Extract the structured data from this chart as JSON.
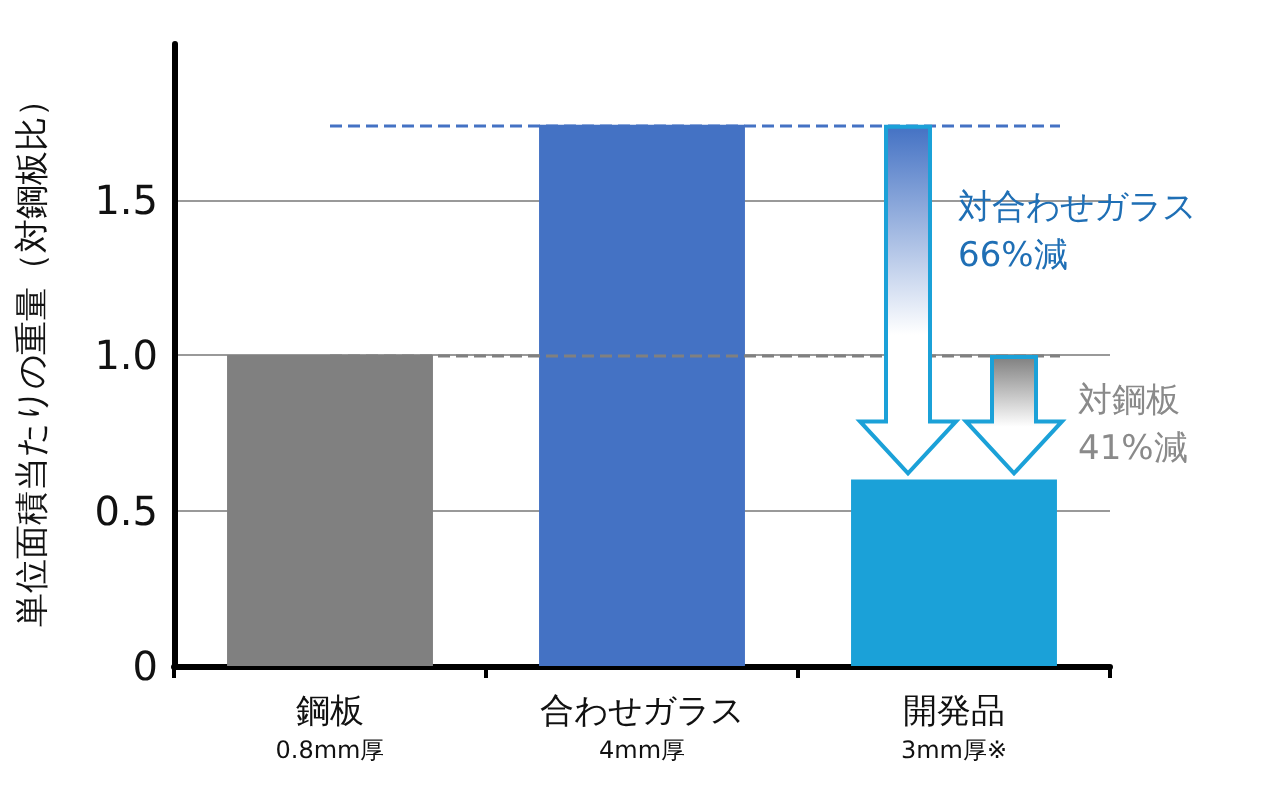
{
  "chart_data": {
    "type": "bar",
    "ylabel": "単位面積当たりの重量（対鋼板比）",
    "categories": [
      "鋼板\n0.8mm厚",
      "合わせガラス\n4mm厚",
      "開発品\n3mm厚※"
    ],
    "values": [
      1.0,
      1.74,
      0.6
    ],
    "colors": [
      "#808080",
      "#4472c4",
      "#1ba1d8"
    ],
    "ylim": [
      0,
      2
    ],
    "yticks": [
      0,
      0.5,
      {
        "value": 1.0,
        "label": "1.0"
      },
      1.5
    ],
    "grid": "y",
    "ref_lines": [
      {
        "axis": "y",
        "value": 1.0,
        "color": "#808080",
        "line_style": "dashed"
      },
      {
        "axis": "y",
        "value": 1.74,
        "color": "#4472c4",
        "line_style": "dashed"
      }
    ],
    "annotations": [
      "対合わせガラス\n66%減",
      "対鋼板\n41%減"
    ]
  }
}
